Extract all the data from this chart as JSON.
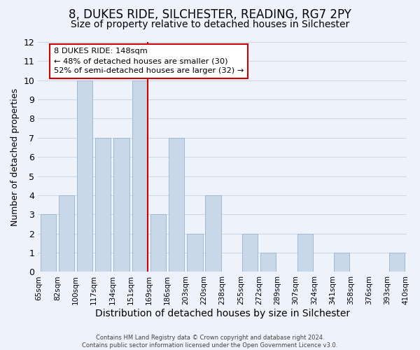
{
  "title": "8, DUKES RIDE, SILCHESTER, READING, RG7 2PY",
  "subtitle": "Size of property relative to detached houses in Silchester",
  "xlabel": "Distribution of detached houses by size in Silchester",
  "ylabel": "Number of detached properties",
  "footer_line1": "Contains HM Land Registry data © Crown copyright and database right 2024.",
  "footer_line2": "Contains public sector information licensed under the Open Government Licence v3.0.",
  "bin_labels": [
    "65sqm",
    "82sqm",
    "100sqm",
    "117sqm",
    "134sqm",
    "151sqm",
    "169sqm",
    "186sqm",
    "203sqm",
    "220sqm",
    "238sqm",
    "255sqm",
    "272sqm",
    "289sqm",
    "307sqm",
    "324sqm",
    "341sqm",
    "358sqm",
    "376sqm",
    "393sqm",
    "410sqm"
  ],
  "bar_heights": [
    3,
    4,
    10,
    7,
    7,
    10,
    3,
    7,
    2,
    4,
    0,
    2,
    1,
    0,
    2,
    0,
    1,
    0,
    0,
    1
  ],
  "highlight_bin_index": 5,
  "bar_color": "#c8d8e8",
  "bar_edge_color": "#a0b8d0",
  "highlight_line_color": "#cc0000",
  "annotation_text": "8 DUKES RIDE: 148sqm\n← 48% of detached houses are smaller (30)\n52% of semi-detached houses are larger (32) →",
  "annotation_box_color": "#ffffff",
  "annotation_box_edge": "#cc0000",
  "ylim": [
    0,
    12
  ],
  "yticks": [
    0,
    1,
    2,
    3,
    4,
    5,
    6,
    7,
    8,
    9,
    10,
    11,
    12
  ],
  "grid_color": "#d0d8e8",
  "background_color": "#eef2fb",
  "title_fontsize": 12,
  "subtitle_fontsize": 10,
  "xlabel_fontsize": 10,
  "ylabel_fontsize": 9
}
